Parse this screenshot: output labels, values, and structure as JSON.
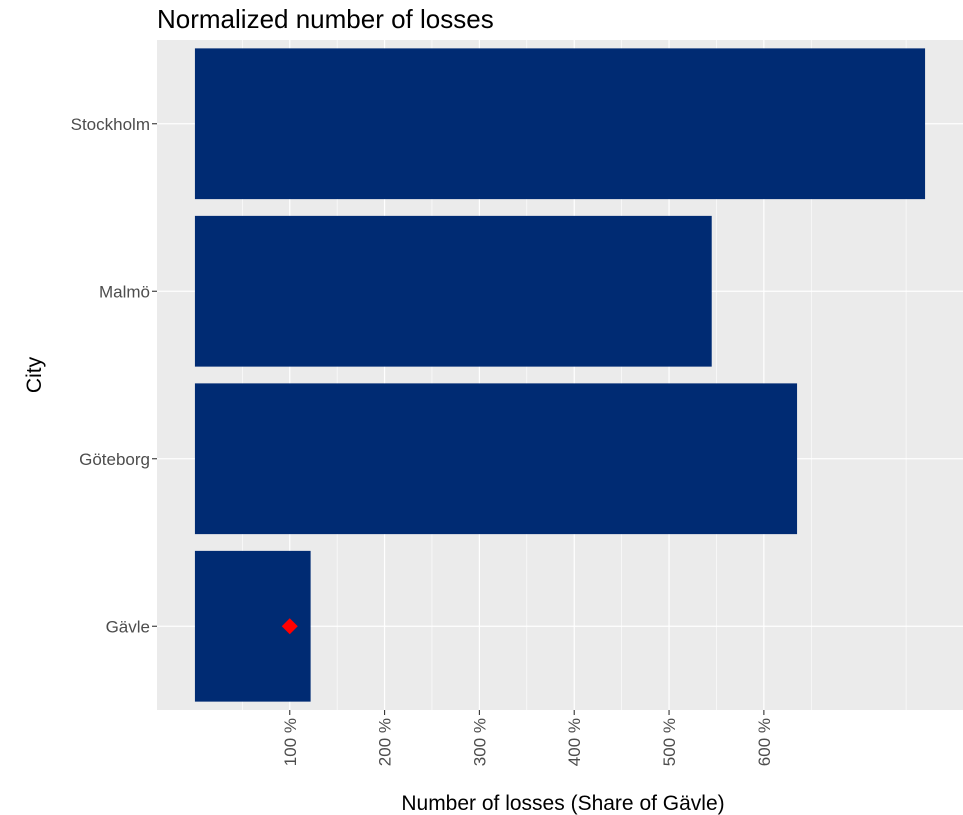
{
  "chart_data": {
    "type": "bar",
    "orientation": "horizontal",
    "title": "Normalized number of losses",
    "xlabel": "Number of losses (Share of Gävle)",
    "ylabel": "City",
    "categories": [
      "Stockholm",
      "Malmö",
      "Göteborg",
      "Gävle"
    ],
    "values": [
      770,
      545,
      635,
      122
    ],
    "x_ticks": [
      100,
      200,
      300,
      400,
      500,
      600
    ],
    "x_tick_labels": [
      "100 %",
      "200 %",
      "300 %",
      "400 %",
      "500 %",
      "600 %"
    ],
    "xlim": [
      -40,
      810
    ],
    "grid": true,
    "bar_color": "#002b73",
    "panel_color": "#ebebeb",
    "grid_color": "#ffffff",
    "markers": [
      {
        "category": "Gävle",
        "x": 100,
        "shape": "diamond",
        "color": "#ff0000"
      }
    ]
  }
}
